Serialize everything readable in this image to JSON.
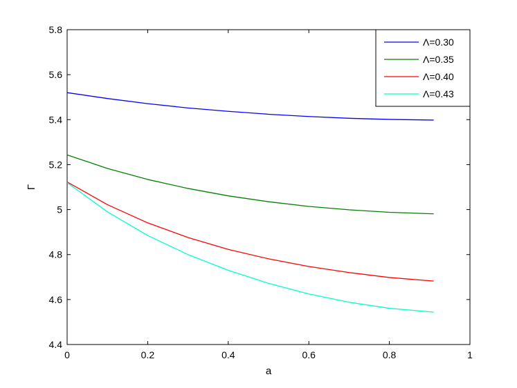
{
  "chart_data": {
    "type": "line",
    "xlabel": "a",
    "ylabel": "Γ",
    "xlim": [
      0,
      1
    ],
    "ylim": [
      4.4,
      5.8
    ],
    "x_ticks": [
      "0",
      "0.2",
      "0.4",
      "0.6",
      "0.8",
      "1"
    ],
    "y_ticks": [
      "4.4",
      "4.6",
      "4.8",
      "5",
      "5.2",
      "5.4",
      "5.6",
      "5.8"
    ],
    "grid": false,
    "legend_position": "top-right",
    "x": [
      0,
      0.1,
      0.2,
      0.3,
      0.4,
      0.5,
      0.6,
      0.7,
      0.8,
      0.91
    ],
    "series": [
      {
        "name": "Λ=0.30",
        "color": "#0000ff",
        "values": [
          5.52,
          5.494,
          5.471,
          5.452,
          5.437,
          5.424,
          5.414,
          5.406,
          5.401,
          5.398
        ]
      },
      {
        "name": "Λ=0.35",
        "color": "#008000",
        "values": [
          5.243,
          5.183,
          5.134,
          5.094,
          5.061,
          5.035,
          5.014,
          4.999,
          4.988,
          4.981
        ]
      },
      {
        "name": "Λ=0.40",
        "color": "#ff0000",
        "values": [
          5.123,
          5.022,
          4.941,
          4.876,
          4.823,
          4.781,
          4.747,
          4.72,
          4.698,
          4.682
        ]
      },
      {
        "name": "Λ=0.43",
        "color": "#00ffcc",
        "values": [
          5.12,
          4.99,
          4.885,
          4.8,
          4.73,
          4.672,
          4.625,
          4.588,
          4.561,
          4.544
        ]
      }
    ]
  }
}
